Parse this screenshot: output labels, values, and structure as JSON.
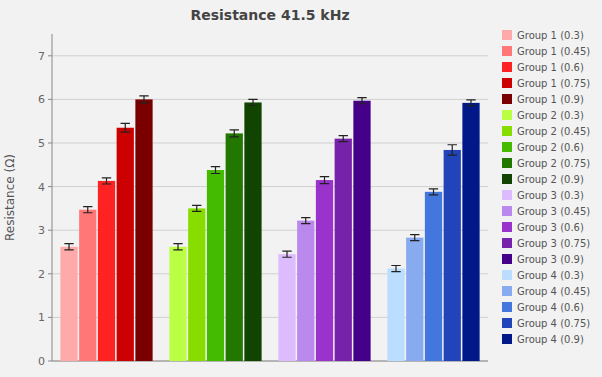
{
  "chart_data": {
    "type": "bar",
    "title": "Resistance 41.5 kHz",
    "ylabel": "Resistance (Ω)",
    "categories": [
      null,
      null,
      null,
      null
    ],
    "series": [
      {
        "name": "Group 1 (0.3)",
        "color": "#FFAAAA",
        "values": [
          2.62,
          null,
          null,
          null
        ],
        "errors": [
          0.07,
          null,
          null,
          null
        ]
      },
      {
        "name": "Group 1 (0.45)",
        "color": "#FF7777",
        "values": [
          3.47,
          null,
          null,
          null
        ],
        "errors": [
          0.07,
          null,
          null,
          null
        ]
      },
      {
        "name": "Group 1 (0.6)",
        "color": "#FF2222",
        "values": [
          4.13,
          null,
          null,
          null
        ],
        "errors": [
          0.07,
          null,
          null,
          null
        ]
      },
      {
        "name": "Group 1 (0.75)",
        "color": "#CC0000",
        "values": [
          5.35,
          null,
          null,
          null
        ],
        "errors": [
          0.1,
          null,
          null,
          null
        ]
      },
      {
        "name": "Group 1 (0.9)",
        "color": "#7A0000",
        "values": [
          6.0,
          null,
          null,
          null
        ],
        "errors": [
          0.08,
          null,
          null,
          null
        ]
      },
      {
        "name": "Group 2 (0.3)",
        "color": "#BBFF44",
        "values": [
          null,
          2.62,
          null,
          null
        ],
        "errors": [
          null,
          0.07,
          null,
          null
        ]
      },
      {
        "name": "Group 2 (0.45)",
        "color": "#88DD00",
        "values": [
          null,
          3.5,
          null,
          null
        ],
        "errors": [
          null,
          0.07,
          null,
          null
        ]
      },
      {
        "name": "Group 2 (0.6)",
        "color": "#44BB00",
        "values": [
          null,
          4.38,
          null,
          null
        ],
        "errors": [
          null,
          0.08,
          null,
          null
        ]
      },
      {
        "name": "Group 2 (0.75)",
        "color": "#227700",
        "values": [
          null,
          5.22,
          null,
          null
        ],
        "errors": [
          null,
          0.08,
          null,
          null
        ]
      },
      {
        "name": "Group 2 (0.9)",
        "color": "#114400",
        "values": [
          null,
          5.93,
          null,
          null
        ],
        "errors": [
          null,
          0.07,
          null,
          null
        ]
      },
      {
        "name": "Group 3 (0.3)",
        "color": "#DDBBFF",
        "values": [
          null,
          null,
          2.45,
          null
        ],
        "errors": [
          null,
          null,
          0.07,
          null
        ]
      },
      {
        "name": "Group 3 (0.45)",
        "color": "#BB88EE",
        "values": [
          null,
          null,
          3.22,
          null
        ],
        "errors": [
          null,
          null,
          0.07,
          null
        ]
      },
      {
        "name": "Group 3 (0.6)",
        "color": "#9933CC",
        "values": [
          null,
          null,
          4.15,
          null
        ],
        "errors": [
          null,
          null,
          0.08,
          null
        ]
      },
      {
        "name": "Group 3 (0.75)",
        "color": "#7722AA",
        "values": [
          null,
          null,
          5.1,
          null
        ],
        "errors": [
          null,
          null,
          0.07,
          null
        ]
      },
      {
        "name": "Group 3 (0.9)",
        "color": "#440088",
        "values": [
          null,
          null,
          5.97,
          null
        ],
        "errors": [
          null,
          null,
          0.07,
          null
        ]
      },
      {
        "name": "Group 4 (0.3)",
        "color": "#BBDDFF",
        "values": [
          null,
          null,
          null,
          2.12
        ],
        "errors": [
          null,
          null,
          null,
          0.07
        ]
      },
      {
        "name": "Group 4 (0.45)",
        "color": "#88AAEE",
        "values": [
          null,
          null,
          null,
          2.83
        ],
        "errors": [
          null,
          null,
          null,
          0.07
        ]
      },
      {
        "name": "Group 4 (0.6)",
        "color": "#4477DD",
        "values": [
          null,
          null,
          null,
          3.88
        ],
        "errors": [
          null,
          null,
          null,
          0.07
        ]
      },
      {
        "name": "Group 4 (0.75)",
        "color": "#2244BB",
        "values": [
          null,
          null,
          null,
          4.84
        ],
        "errors": [
          null,
          null,
          null,
          0.12
        ]
      },
      {
        "name": "Group 4 (0.9)",
        "color": "#001888",
        "values": [
          null,
          null,
          null,
          5.92
        ],
        "errors": [
          null,
          null,
          null,
          0.07
        ]
      }
    ],
    "ylim": [
      0,
      7.5
    ],
    "yticks": [
      0,
      1,
      2,
      3,
      4,
      5,
      6,
      7
    ],
    "grid": true,
    "legend": "right",
    "tick_labels": "y"
  }
}
